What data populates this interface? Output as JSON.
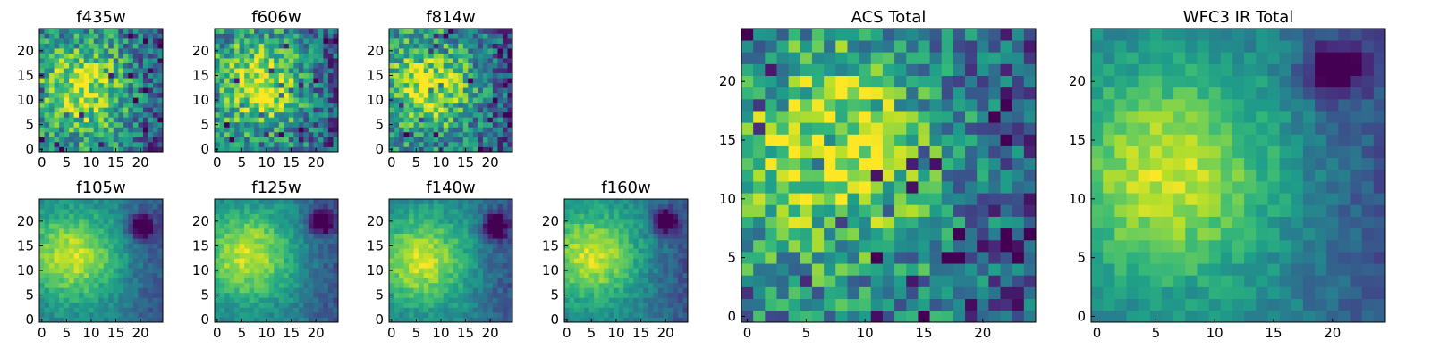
{
  "chart_data": [
    {
      "type": "heatmap",
      "title": "f435w",
      "xticks": [
        "0",
        "5",
        "10",
        "15",
        "20"
      ],
      "yticks": [
        "0",
        "5",
        "10",
        "15",
        "20"
      ],
      "xlim": [
        0,
        24
      ],
      "ylim": [
        0,
        24
      ],
      "grid_size": 25,
      "colormap": "viridis",
      "texture": "noisy",
      "blob": [
        8,
        12
      ],
      "void": null
    },
    {
      "type": "heatmap",
      "title": "f606w",
      "xticks": [
        "0",
        "5",
        "10",
        "15",
        "20"
      ],
      "yticks": [
        "0",
        "5",
        "10",
        "15",
        "20"
      ],
      "xlim": [
        0,
        24
      ],
      "ylim": [
        0,
        24
      ],
      "grid_size": 25,
      "colormap": "viridis",
      "texture": "noisy",
      "blob": [
        8,
        13
      ],
      "void": null
    },
    {
      "type": "heatmap",
      "title": "f814w",
      "xticks": [
        "0",
        "5",
        "10",
        "15",
        "20"
      ],
      "yticks": [
        "0",
        "5",
        "10",
        "15",
        "20"
      ],
      "xlim": [
        0,
        24
      ],
      "ylim": [
        0,
        24
      ],
      "grid_size": 25,
      "colormap": "viridis",
      "texture": "noisy",
      "blob": [
        7,
        13
      ],
      "void": null
    },
    {
      "type": "heatmap",
      "title": "f105w",
      "xticks": [
        "0",
        "5",
        "10",
        "15",
        "20"
      ],
      "yticks": [
        "0",
        "5",
        "10",
        "15",
        "20"
      ],
      "xlim": [
        0,
        24
      ],
      "ylim": [
        0,
        24
      ],
      "grid_size": 25,
      "colormap": "viridis",
      "texture": "smooth",
      "blob": [
        6,
        13
      ],
      "void": [
        20,
        19
      ]
    },
    {
      "type": "heatmap",
      "title": "f125w",
      "xticks": [
        "0",
        "5",
        "10",
        "15",
        "20"
      ],
      "yticks": [
        "0",
        "5",
        "10",
        "15",
        "20"
      ],
      "xlim": [
        0,
        24
      ],
      "ylim": [
        0,
        24
      ],
      "grid_size": 25,
      "colormap": "viridis",
      "texture": "smooth",
      "blob": [
        6,
        13
      ],
      "void": [
        21,
        20
      ]
    },
    {
      "type": "heatmap",
      "title": "f140w",
      "xticks": [
        "0",
        "5",
        "10",
        "15",
        "20"
      ],
      "yticks": [
        "0",
        "5",
        "10",
        "15",
        "20"
      ],
      "xlim": [
        0,
        24
      ],
      "ylim": [
        0,
        24
      ],
      "grid_size": 25,
      "colormap": "viridis",
      "texture": "smooth",
      "blob": [
        6,
        12
      ],
      "void": [
        21,
        19
      ]
    },
    {
      "type": "heatmap",
      "title": "f160w",
      "xticks": [
        "0",
        "5",
        "10",
        "15",
        "20"
      ],
      "yticks": [
        "0",
        "5",
        "10",
        "15",
        "20"
      ],
      "xlim": [
        0,
        24
      ],
      "ylim": [
        0,
        24
      ],
      "grid_size": 25,
      "colormap": "viridis",
      "texture": "smooth",
      "blob": [
        5,
        13
      ],
      "void": [
        20,
        20
      ]
    },
    {
      "type": "heatmap",
      "title": "ACS Total",
      "xticks": [
        "0",
        "5",
        "10",
        "15",
        "20"
      ],
      "yticks": [
        "0",
        "5",
        "10",
        "15",
        "20"
      ],
      "xlim": [
        0,
        24
      ],
      "ylim": [
        0,
        24
      ],
      "grid_size": 25,
      "colormap": "viridis",
      "texture": "noisy",
      "blob": [
        7,
        14
      ],
      "void": null
    },
    {
      "type": "heatmap",
      "title": "WFC3 IR Total",
      "xticks": [
        "0",
        "5",
        "10",
        "15",
        "20"
      ],
      "yticks": [
        "0",
        "5",
        "10",
        "15",
        "20"
      ],
      "xlim": [
        0,
        24
      ],
      "ylim": [
        0,
        24
      ],
      "grid_size": 25,
      "colormap": "viridis",
      "texture": "smooth",
      "blob": [
        6,
        12
      ],
      "void": [
        20,
        21
      ]
    }
  ]
}
